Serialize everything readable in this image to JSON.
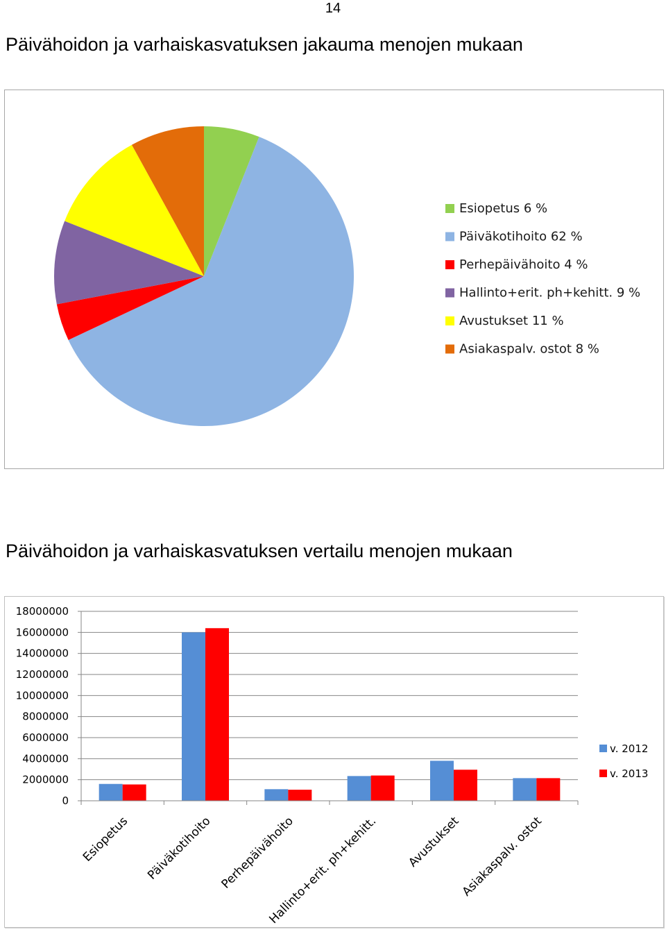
{
  "page_number": "14",
  "chart_data": [
    {
      "type": "pie",
      "title": "Päivähoidon ja varhaiskasvatuksen jakauma menojen mukaan",
      "slices": [
        {
          "label": "Esiopetus",
          "percent_label": "6 %",
          "value": 6,
          "color": "#92d050"
        },
        {
          "label": "Päiväkotihoito",
          "percent_label": "62 %",
          "value": 62,
          "color": "#8eb4e3"
        },
        {
          "label": "Perhepäivähoito",
          "percent_label": "4 %",
          "value": 4,
          "color": "#ff0000"
        },
        {
          "label": "Hallinto+erit. ph+kehitt.",
          "percent_label": "9 %",
          "value": 9,
          "color": "#8064a2"
        },
        {
          "label": "Avustukset",
          "percent_label": "11 %",
          "value": 11,
          "color": "#ffff00"
        },
        {
          "label": "Asiakaspalv. ostot",
          "percent_label": "8 %",
          "value": 8,
          "color": "#e36c09"
        }
      ],
      "legend_position": "right"
    },
    {
      "type": "bar",
      "title": "Päivähoidon ja varhaiskasvatuksen vertailu menojen mukaan",
      "categories": [
        "Esiopetus",
        "Päiväkotihoito",
        "Perhepäivähoito",
        "Hallinto+erit. ph+kehitt.",
        "Avustukset",
        "Asiakaspalv. ostot"
      ],
      "series": [
        {
          "name": "v. 2012",
          "color": "#558ed5",
          "values": [
            1600000,
            16000000,
            1100000,
            2350000,
            3800000,
            2150000
          ]
        },
        {
          "name": "v. 2013",
          "color": "#ff0000",
          "values": [
            1550000,
            16400000,
            1050000,
            2400000,
            2950000,
            2150000
          ]
        }
      ],
      "ylim": [
        0,
        18000000
      ],
      "yticks": [
        "0",
        "2000000",
        "4000000",
        "6000000",
        "8000000",
        "10000000",
        "12000000",
        "14000000",
        "16000000",
        "18000000"
      ],
      "grid": true,
      "legend_position": "right"
    }
  ]
}
